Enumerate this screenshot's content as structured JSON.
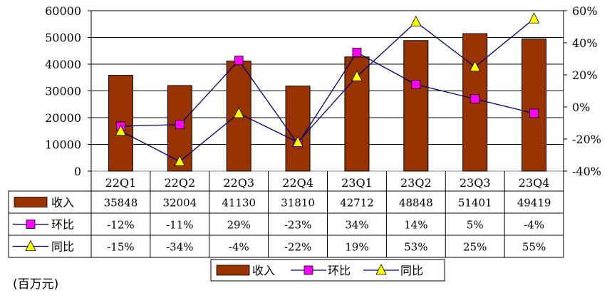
{
  "chart_data": {
    "type": "bar",
    "categories": [
      "22Q1",
      "22Q2",
      "22Q3",
      "22Q4",
      "23Q1",
      "23Q2",
      "23Q3",
      "23Q4"
    ],
    "series": [
      {
        "name": "收入",
        "type": "bar",
        "axis": "left",
        "values": [
          35848,
          32004,
          41130,
          31810,
          42712,
          48848,
          51401,
          49419
        ],
        "table_values": [
          "35848",
          "32004",
          "41130",
          "31810",
          "42712",
          "48848",
          "51401",
          "49419"
        ],
        "color": "#993300"
      },
      {
        "name": "环比",
        "type": "line",
        "axis": "right",
        "values": [
          -12,
          -11,
          29,
          -23,
          34,
          14,
          5,
          -4
        ],
        "table_values": [
          "-12%",
          "-11%",
          "29%",
          "-23%",
          "34%",
          "14%",
          "5%",
          "-4%"
        ],
        "color": "#ff00ff",
        "line_color": "#000080",
        "marker": "square"
      },
      {
        "name": "同比",
        "type": "line",
        "axis": "right",
        "values": [
          -15,
          -34,
          -4,
          -22,
          19,
          53,
          25,
          55
        ],
        "table_values": [
          "-15%",
          "-34%",
          "-4%",
          "-22%",
          "19%",
          "53%",
          "25%",
          "55%"
        ],
        "color": "#ffff00",
        "line_color": "#000080",
        "marker": "triangle"
      }
    ],
    "y_left": {
      "range": [
        0,
        60000
      ],
      "ticks": [
        "0",
        "10000",
        "20000",
        "30000",
        "40000",
        "50000",
        "60000"
      ]
    },
    "y_right": {
      "range": [
        -40,
        60
      ],
      "ticks": [
        "-40%",
        "-20%",
        "0%",
        "20%",
        "40%",
        "60%"
      ]
    },
    "grid": "horizontal",
    "data_table": true,
    "legend_position": "bottom-center",
    "unit_note": "(百万元)"
  }
}
